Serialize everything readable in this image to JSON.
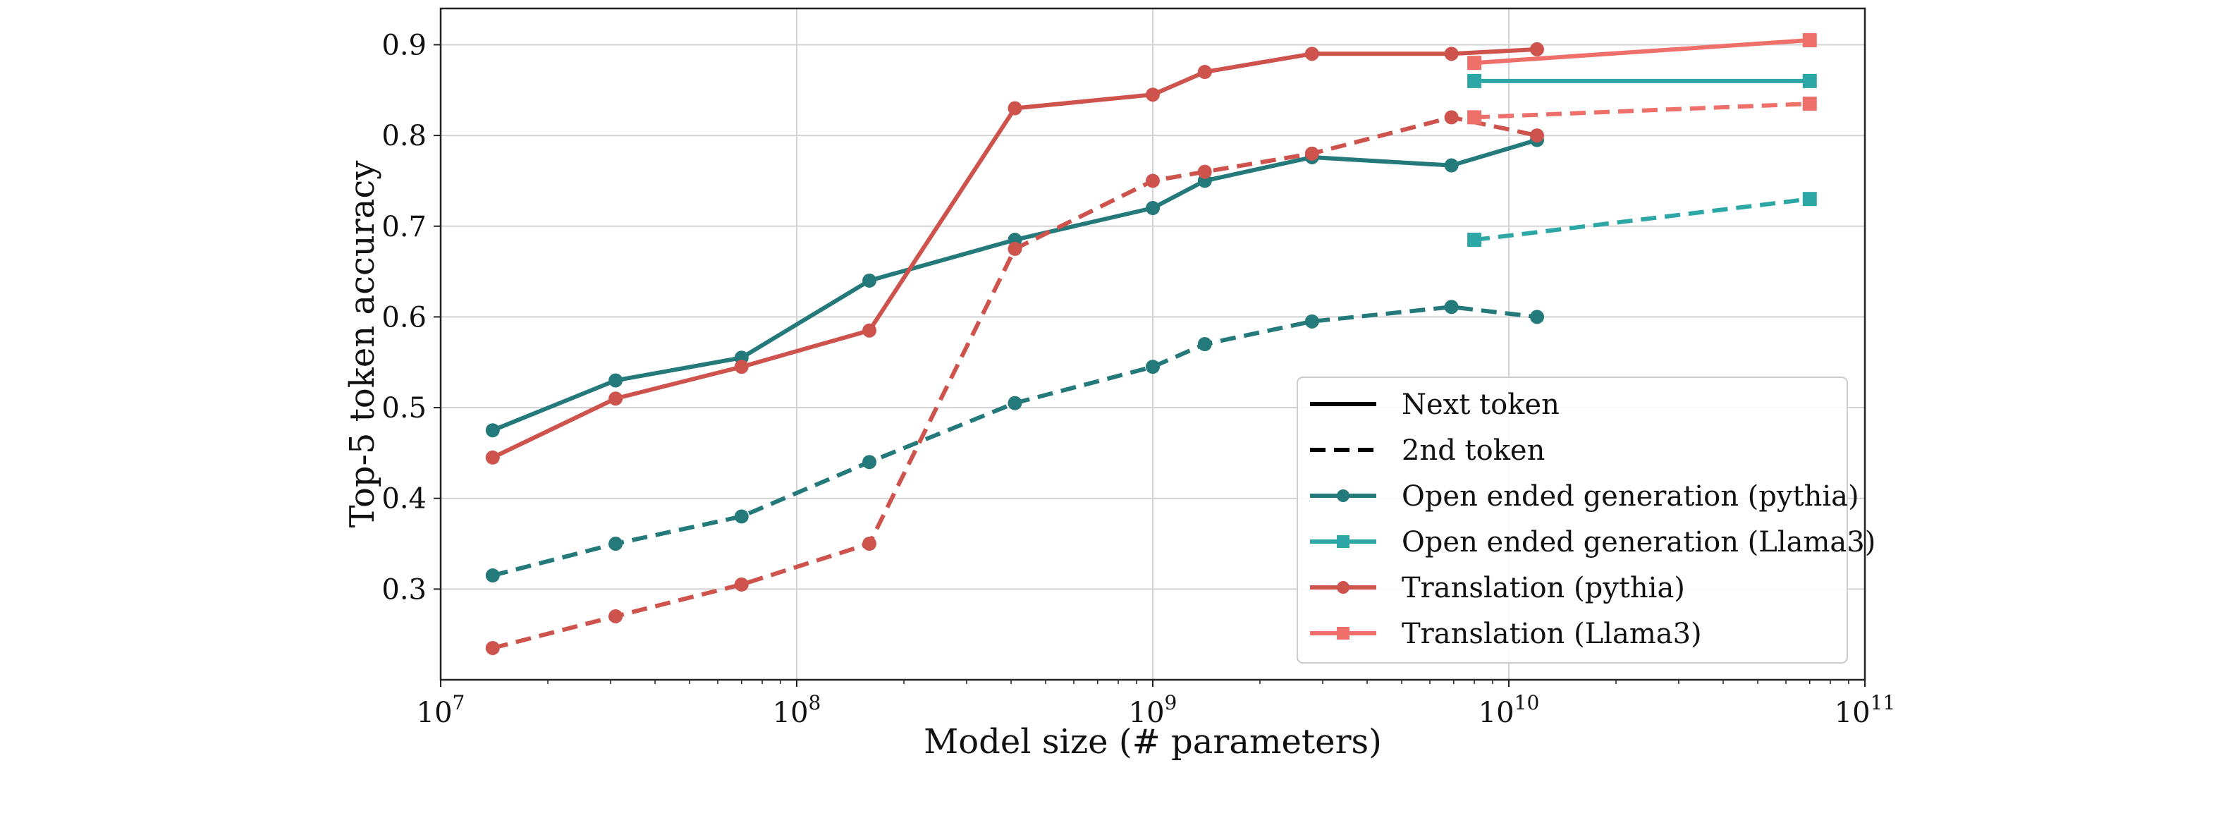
{
  "chart_data": {
    "type": "line",
    "xlabel": "Model size (# parameters)",
    "ylabel": "Top-5 token accuracy",
    "x_scale": "log",
    "xlim": [
      10000000,
      100000000000
    ],
    "ylim": [
      0.2,
      0.94
    ],
    "x_ticks": [
      {
        "value": 10000000,
        "base": "10",
        "exp": "7"
      },
      {
        "value": 100000000,
        "base": "10",
        "exp": "8"
      },
      {
        "value": 1000000000,
        "base": "10",
        "exp": "9"
      },
      {
        "value": 10000000000,
        "base": "10",
        "exp": "10"
      },
      {
        "value": 100000000000,
        "base": "10",
        "exp": "11"
      }
    ],
    "y_ticks": [
      {
        "value": 0.3,
        "label": "0.3"
      },
      {
        "value": 0.4,
        "label": "0.4"
      },
      {
        "value": 0.5,
        "label": "0.5"
      },
      {
        "value": 0.6,
        "label": "0.6"
      },
      {
        "value": 0.7,
        "label": "0.7"
      },
      {
        "value": 0.8,
        "label": "0.8"
      },
      {
        "value": 0.9,
        "label": "0.9"
      }
    ],
    "grid": true,
    "legend_position": "lower-right",
    "legend": [
      {
        "label": "Next token",
        "color": "#000000",
        "dash": "solid",
        "marker": "none"
      },
      {
        "label": "2nd token",
        "color": "#000000",
        "dash": "dashed",
        "marker": "none"
      },
      {
        "label": "Open ended generation (pythia)",
        "color": "#247a7a",
        "dash": "solid",
        "marker": "circle"
      },
      {
        "label": "Open ended generation (Llama3)",
        "color": "#2ca7a5",
        "dash": "solid",
        "marker": "square"
      },
      {
        "label": "Translation (pythia)",
        "color": "#cd534c",
        "dash": "solid",
        "marker": "circle"
      },
      {
        "label": "Translation (Llama3)",
        "color": "#ef6f6a",
        "dash": "solid",
        "marker": "square"
      }
    ],
    "series": [
      {
        "task": "Open ended generation (pythia)",
        "token": "Next token",
        "color": "#247a7a",
        "dash": "solid",
        "marker": "circle",
        "x": [
          14000000,
          31000000,
          70000000,
          160000000,
          410000000,
          1000000000,
          1400000000,
          2800000000,
          6900000000,
          12000000000
        ],
        "y": [
          0.475,
          0.53,
          0.555,
          0.64,
          0.685,
          0.72,
          0.75,
          0.776,
          0.767,
          0.795
        ]
      },
      {
        "task": "Open ended generation (pythia)",
        "token": "2nd token",
        "color": "#247a7a",
        "dash": "dashed",
        "marker": "circle",
        "x": [
          14000000,
          31000000,
          70000000,
          160000000,
          410000000,
          1000000000,
          1400000000,
          2800000000,
          6900000000,
          12000000000
        ],
        "y": [
          0.315,
          0.35,
          0.38,
          0.44,
          0.505,
          0.545,
          0.57,
          0.595,
          0.611,
          0.6
        ]
      },
      {
        "task": "Translation (pythia)",
        "token": "Next token",
        "color": "#cd534c",
        "dash": "solid",
        "marker": "circle",
        "x": [
          14000000,
          31000000,
          70000000,
          160000000,
          410000000,
          1000000000,
          1400000000,
          2800000000,
          6900000000,
          12000000000
        ],
        "y": [
          0.445,
          0.51,
          0.545,
          0.585,
          0.83,
          0.845,
          0.87,
          0.89,
          0.89,
          0.895
        ]
      },
      {
        "task": "Translation (pythia)",
        "token": "2nd token",
        "color": "#cd534c",
        "dash": "dashed",
        "marker": "circle",
        "x": [
          14000000,
          31000000,
          70000000,
          160000000,
          410000000,
          1000000000,
          1400000000,
          2800000000,
          6900000000,
          12000000000
        ],
        "y": [
          0.235,
          0.27,
          0.305,
          0.35,
          0.675,
          0.75,
          0.76,
          0.78,
          0.82,
          0.8
        ]
      },
      {
        "task": "Open ended generation (Llama3)",
        "token": "Next token",
        "color": "#2ca7a5",
        "dash": "solid",
        "marker": "square",
        "x": [
          8000000000,
          70000000000
        ],
        "y": [
          0.86,
          0.86
        ]
      },
      {
        "task": "Open ended generation (Llama3)",
        "token": "2nd token",
        "color": "#2ca7a5",
        "dash": "dashed",
        "marker": "square",
        "x": [
          8000000000,
          70000000000
        ],
        "y": [
          0.685,
          0.73
        ]
      },
      {
        "task": "Translation (Llama3)",
        "token": "Next token",
        "color": "#ef6f6a",
        "dash": "solid",
        "marker": "square",
        "x": [
          8000000000,
          70000000000
        ],
        "y": [
          0.88,
          0.905
        ]
      },
      {
        "task": "Translation (Llama3)",
        "token": "2nd token",
        "color": "#ef6f6a",
        "dash": "dashed",
        "marker": "square",
        "x": [
          8000000000,
          70000000000
        ],
        "y": [
          0.82,
          0.835
        ]
      }
    ]
  }
}
